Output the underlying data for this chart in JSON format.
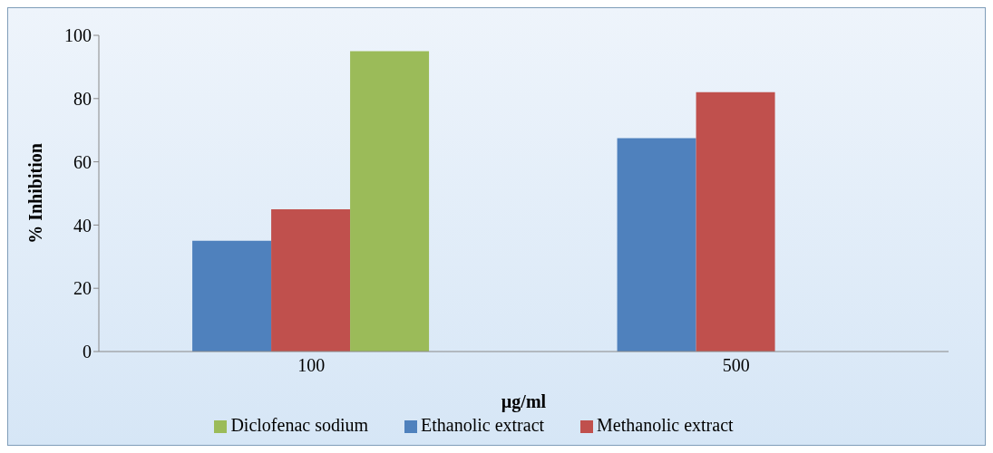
{
  "chart_data": {
    "type": "bar",
    "xlabel": "µg/ml",
    "ylabel": "% Inhibition",
    "categories": [
      "100",
      "500"
    ],
    "series": [
      {
        "name": "Ethanolic extract",
        "color": "#4f81bd",
        "values": [
          35,
          67.5
        ]
      },
      {
        "name": "Methanolic extract",
        "color": "#c0504d",
        "values": [
          45,
          82
        ]
      },
      {
        "name": "Diclofenac sodium",
        "color": "#9bbb59",
        "values": [
          95,
          null
        ]
      }
    ],
    "ylim": [
      0,
      100
    ],
    "yticks": [
      0,
      20,
      40,
      60,
      80,
      100
    ],
    "legend": "bottom"
  }
}
